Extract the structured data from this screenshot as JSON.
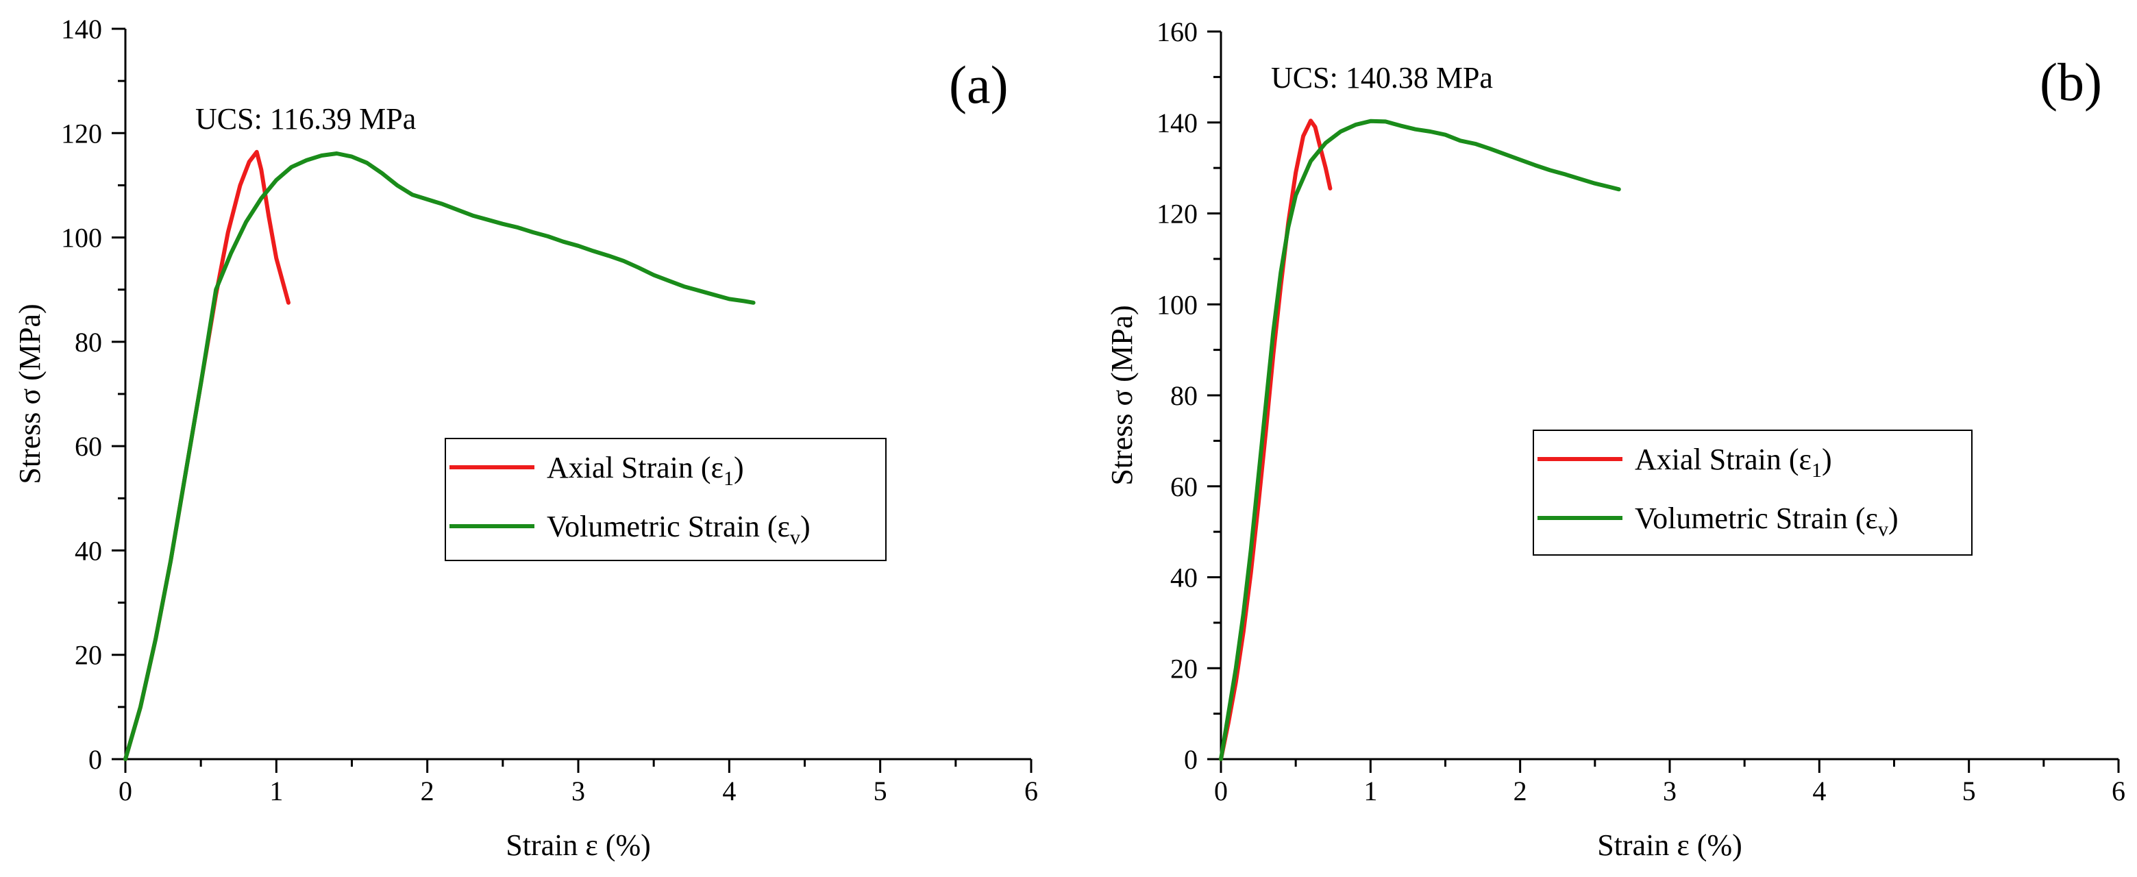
{
  "chart_data": [
    {
      "type": "line",
      "panel_label": "(a)",
      "annotation": "UCS: 116.39 MPa",
      "xlabel": "Strain ε (%)",
      "ylabel": "Stress σ (MPa)",
      "xlim": [
        0,
        6
      ],
      "ylim": [
        0,
        140
      ],
      "x_ticks": [
        "0",
        "1",
        "2",
        "3",
        "4",
        "5",
        "6"
      ],
      "y_ticks": [
        "0",
        "20",
        "40",
        "60",
        "80",
        "100",
        "120",
        "140"
      ],
      "legend": {
        "position": "center-right",
        "entries": [
          {
            "text": "Axial Strain (ε",
            "sub": "1",
            "close": ")"
          },
          {
            "text": "Volumetric Strain (ε",
            "sub": "v",
            "close": ")"
          }
        ]
      },
      "series": [
        {
          "name": "Axial Strain (ε1)",
          "color": "#ee1c1c",
          "x": [
            0,
            0.1,
            0.2,
            0.3,
            0.4,
            0.5,
            0.6,
            0.68,
            0.76,
            0.82,
            0.87,
            0.9,
            0.95,
            1.0,
            1.08
          ],
          "y": [
            0,
            10,
            23,
            38,
            55,
            72,
            89,
            101,
            110,
            114.5,
            116.39,
            113,
            104,
            96,
            87.5
          ]
        },
        {
          "name": "Volumetric Strain (εv)",
          "color": "#1a8c1a",
          "x": [
            0,
            0.1,
            0.2,
            0.3,
            0.4,
            0.5,
            0.6,
            0.7,
            0.8,
            0.9,
            1.0,
            1.1,
            1.2,
            1.3,
            1.4,
            1.5,
            1.6,
            1.7,
            1.8,
            1.9,
            2.0,
            2.1,
            2.2,
            2.3,
            2.4,
            2.5,
            2.6,
            2.7,
            2.8,
            2.9,
            3.0,
            3.1,
            3.2,
            3.3,
            3.4,
            3.5,
            3.6,
            3.7,
            3.8,
            3.9,
            4.0,
            4.1,
            4.16
          ],
          "y": [
            0,
            10,
            23,
            38,
            55,
            72,
            90,
            97,
            103,
            107.5,
            111,
            113.5,
            114.8,
            115.7,
            116.1,
            115.5,
            114.3,
            112.3,
            110,
            108.2,
            107.3,
            106.4,
            105.3,
            104.2,
            103.4,
            102.6,
            101.9,
            101,
            100.2,
            99.2,
            98.4,
            97.4,
            96.5,
            95.5,
            94.2,
            92.8,
            91.7,
            90.6,
            89.8,
            89.0,
            88.2,
            87.8,
            87.5
          ]
        }
      ]
    },
    {
      "type": "line",
      "panel_label": "(b)",
      "annotation": "UCS: 140.38 MPa",
      "xlabel": "Strain ε (%)",
      "ylabel": "Stress σ (MPa)",
      "xlim": [
        0,
        6
      ],
      "ylim": [
        0,
        160
      ],
      "x_ticks": [
        "0",
        "1",
        "2",
        "3",
        "4",
        "5",
        "6"
      ],
      "y_ticks": [
        "0",
        "20",
        "40",
        "60",
        "80",
        "100",
        "120",
        "140",
        "160"
      ],
      "legend": {
        "position": "center-right",
        "entries": [
          {
            "text": "Axial Strain (ε",
            "sub": "1",
            "close": ")"
          },
          {
            "text": "Volumetric Strain (ε",
            "sub": "v",
            "close": ")"
          }
        ]
      },
      "series": [
        {
          "name": "Axial Strain (ε1)",
          "color": "#ee1c1c",
          "x": [
            0,
            0.05,
            0.1,
            0.15,
            0.2,
            0.25,
            0.3,
            0.35,
            0.4,
            0.45,
            0.5,
            0.55,
            0.6,
            0.63,
            0.66,
            0.7,
            0.73
          ],
          "y": [
            0,
            8,
            17,
            28,
            41,
            56,
            72,
            89,
            104,
            118,
            129,
            137,
            140.38,
            139,
            135,
            130,
            125.5
          ]
        },
        {
          "name": "Volumetric Strain (εv)",
          "color": "#1a8c1a",
          "x": [
            0,
            0.05,
            0.1,
            0.15,
            0.2,
            0.25,
            0.3,
            0.35,
            0.4,
            0.45,
            0.5,
            0.6,
            0.7,
            0.8,
            0.9,
            1.0,
            1.1,
            1.2,
            1.3,
            1.4,
            1.5,
            1.6,
            1.7,
            1.8,
            1.9,
            2.0,
            2.1,
            2.2,
            2.3,
            2.4,
            2.5,
            2.6,
            2.66
          ],
          "y": [
            0,
            10,
            20,
            32,
            46,
            62,
            78,
            94,
            107,
            117,
            124,
            131.5,
            135.5,
            138,
            139.5,
            140.3,
            140.2,
            139.3,
            138.5,
            138.0,
            137.3,
            136.0,
            135.3,
            134.2,
            133.0,
            131.8,
            130.6,
            129.5,
            128.6,
            127.6,
            126.6,
            125.8,
            125.3
          ]
        }
      ]
    }
  ]
}
